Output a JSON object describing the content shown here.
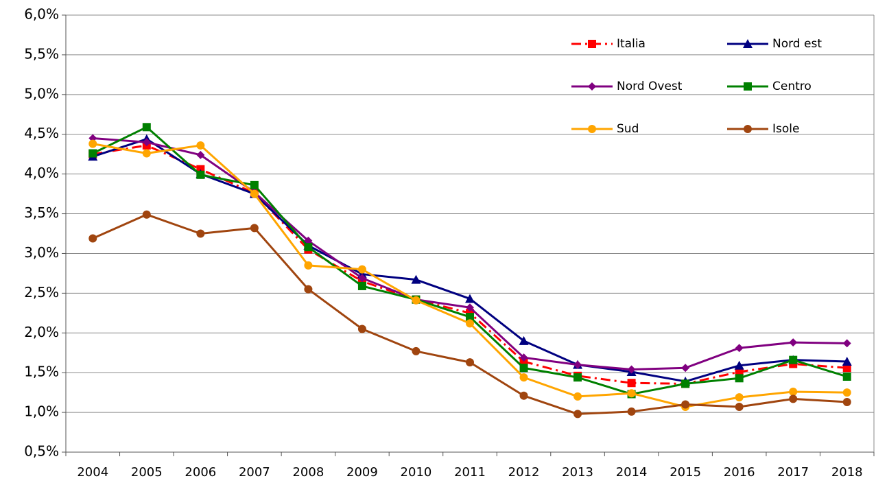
{
  "chart_data": {
    "type": "line",
    "categories": [
      "2004",
      "2005",
      "2006",
      "2007",
      "2008",
      "2009",
      "2010",
      "2011",
      "2012",
      "2013",
      "2014",
      "2015",
      "2016",
      "2017",
      "2018"
    ],
    "series": [
      {
        "name": "Italia",
        "color": "#ff0000",
        "marker": "square",
        "dashed": true,
        "values": [
          4.25,
          4.36,
          4.06,
          3.76,
          3.05,
          2.65,
          2.42,
          2.25,
          1.64,
          1.46,
          1.37,
          1.36,
          1.51,
          1.61,
          1.56
        ]
      },
      {
        "name": "Nord est",
        "color": "#000080",
        "marker": "triangle",
        "values": [
          4.22,
          4.44,
          4.0,
          3.75,
          3.1,
          2.74,
          2.67,
          2.43,
          1.9,
          1.6,
          1.51,
          1.39,
          1.59,
          1.66,
          1.64
        ]
      },
      {
        "name": "Nord Ovest",
        "color": "#800080",
        "marker": "diamond",
        "values": [
          4.45,
          4.4,
          4.24,
          3.77,
          3.16,
          2.69,
          2.42,
          2.32,
          1.69,
          1.6,
          1.54,
          1.56,
          1.81,
          1.88,
          1.87
        ]
      },
      {
        "name": "Centro",
        "color": "#008000",
        "marker": "square",
        "values": [
          4.26,
          4.59,
          3.99,
          3.86,
          3.08,
          2.59,
          2.42,
          2.2,
          1.56,
          1.44,
          1.23,
          1.36,
          1.43,
          1.66,
          1.45
        ]
      },
      {
        "name": "Sud",
        "color": "#ffa500",
        "marker": "circle",
        "values": [
          4.38,
          4.26,
          4.36,
          3.75,
          2.85,
          2.8,
          2.41,
          2.12,
          1.44,
          1.2,
          1.24,
          1.07,
          1.19,
          1.26,
          1.25
        ]
      },
      {
        "name": "Isole",
        "color": "#a0450f",
        "marker": "circle",
        "values": [
          3.19,
          3.49,
          3.25,
          3.32,
          2.55,
          2.05,
          1.77,
          1.63,
          1.21,
          0.98,
          1.01,
          1.1,
          1.07,
          1.17,
          1.13
        ]
      }
    ],
    "ylim": [
      0.5,
      6.0
    ],
    "yticks": [
      {
        "value": 0.5,
        "label": "0,5%"
      },
      {
        "value": 1.0,
        "label": "1,0%"
      },
      {
        "value": 1.5,
        "label": "1,5%"
      },
      {
        "value": 2.0,
        "label": "2,0%"
      },
      {
        "value": 2.5,
        "label": "2,5%"
      },
      {
        "value": 3.0,
        "label": "3,0%"
      },
      {
        "value": 3.5,
        "label": "3,5%"
      },
      {
        "value": 4.0,
        "label": "4,0%"
      },
      {
        "value": 4.5,
        "label": "4,5%"
      },
      {
        "value": 5.0,
        "label": "5,0%"
      },
      {
        "value": 5.5,
        "label": "5,5%"
      },
      {
        "value": 6.0,
        "label": "6,0%"
      }
    ],
    "grid": true,
    "legend": "upper right"
  }
}
